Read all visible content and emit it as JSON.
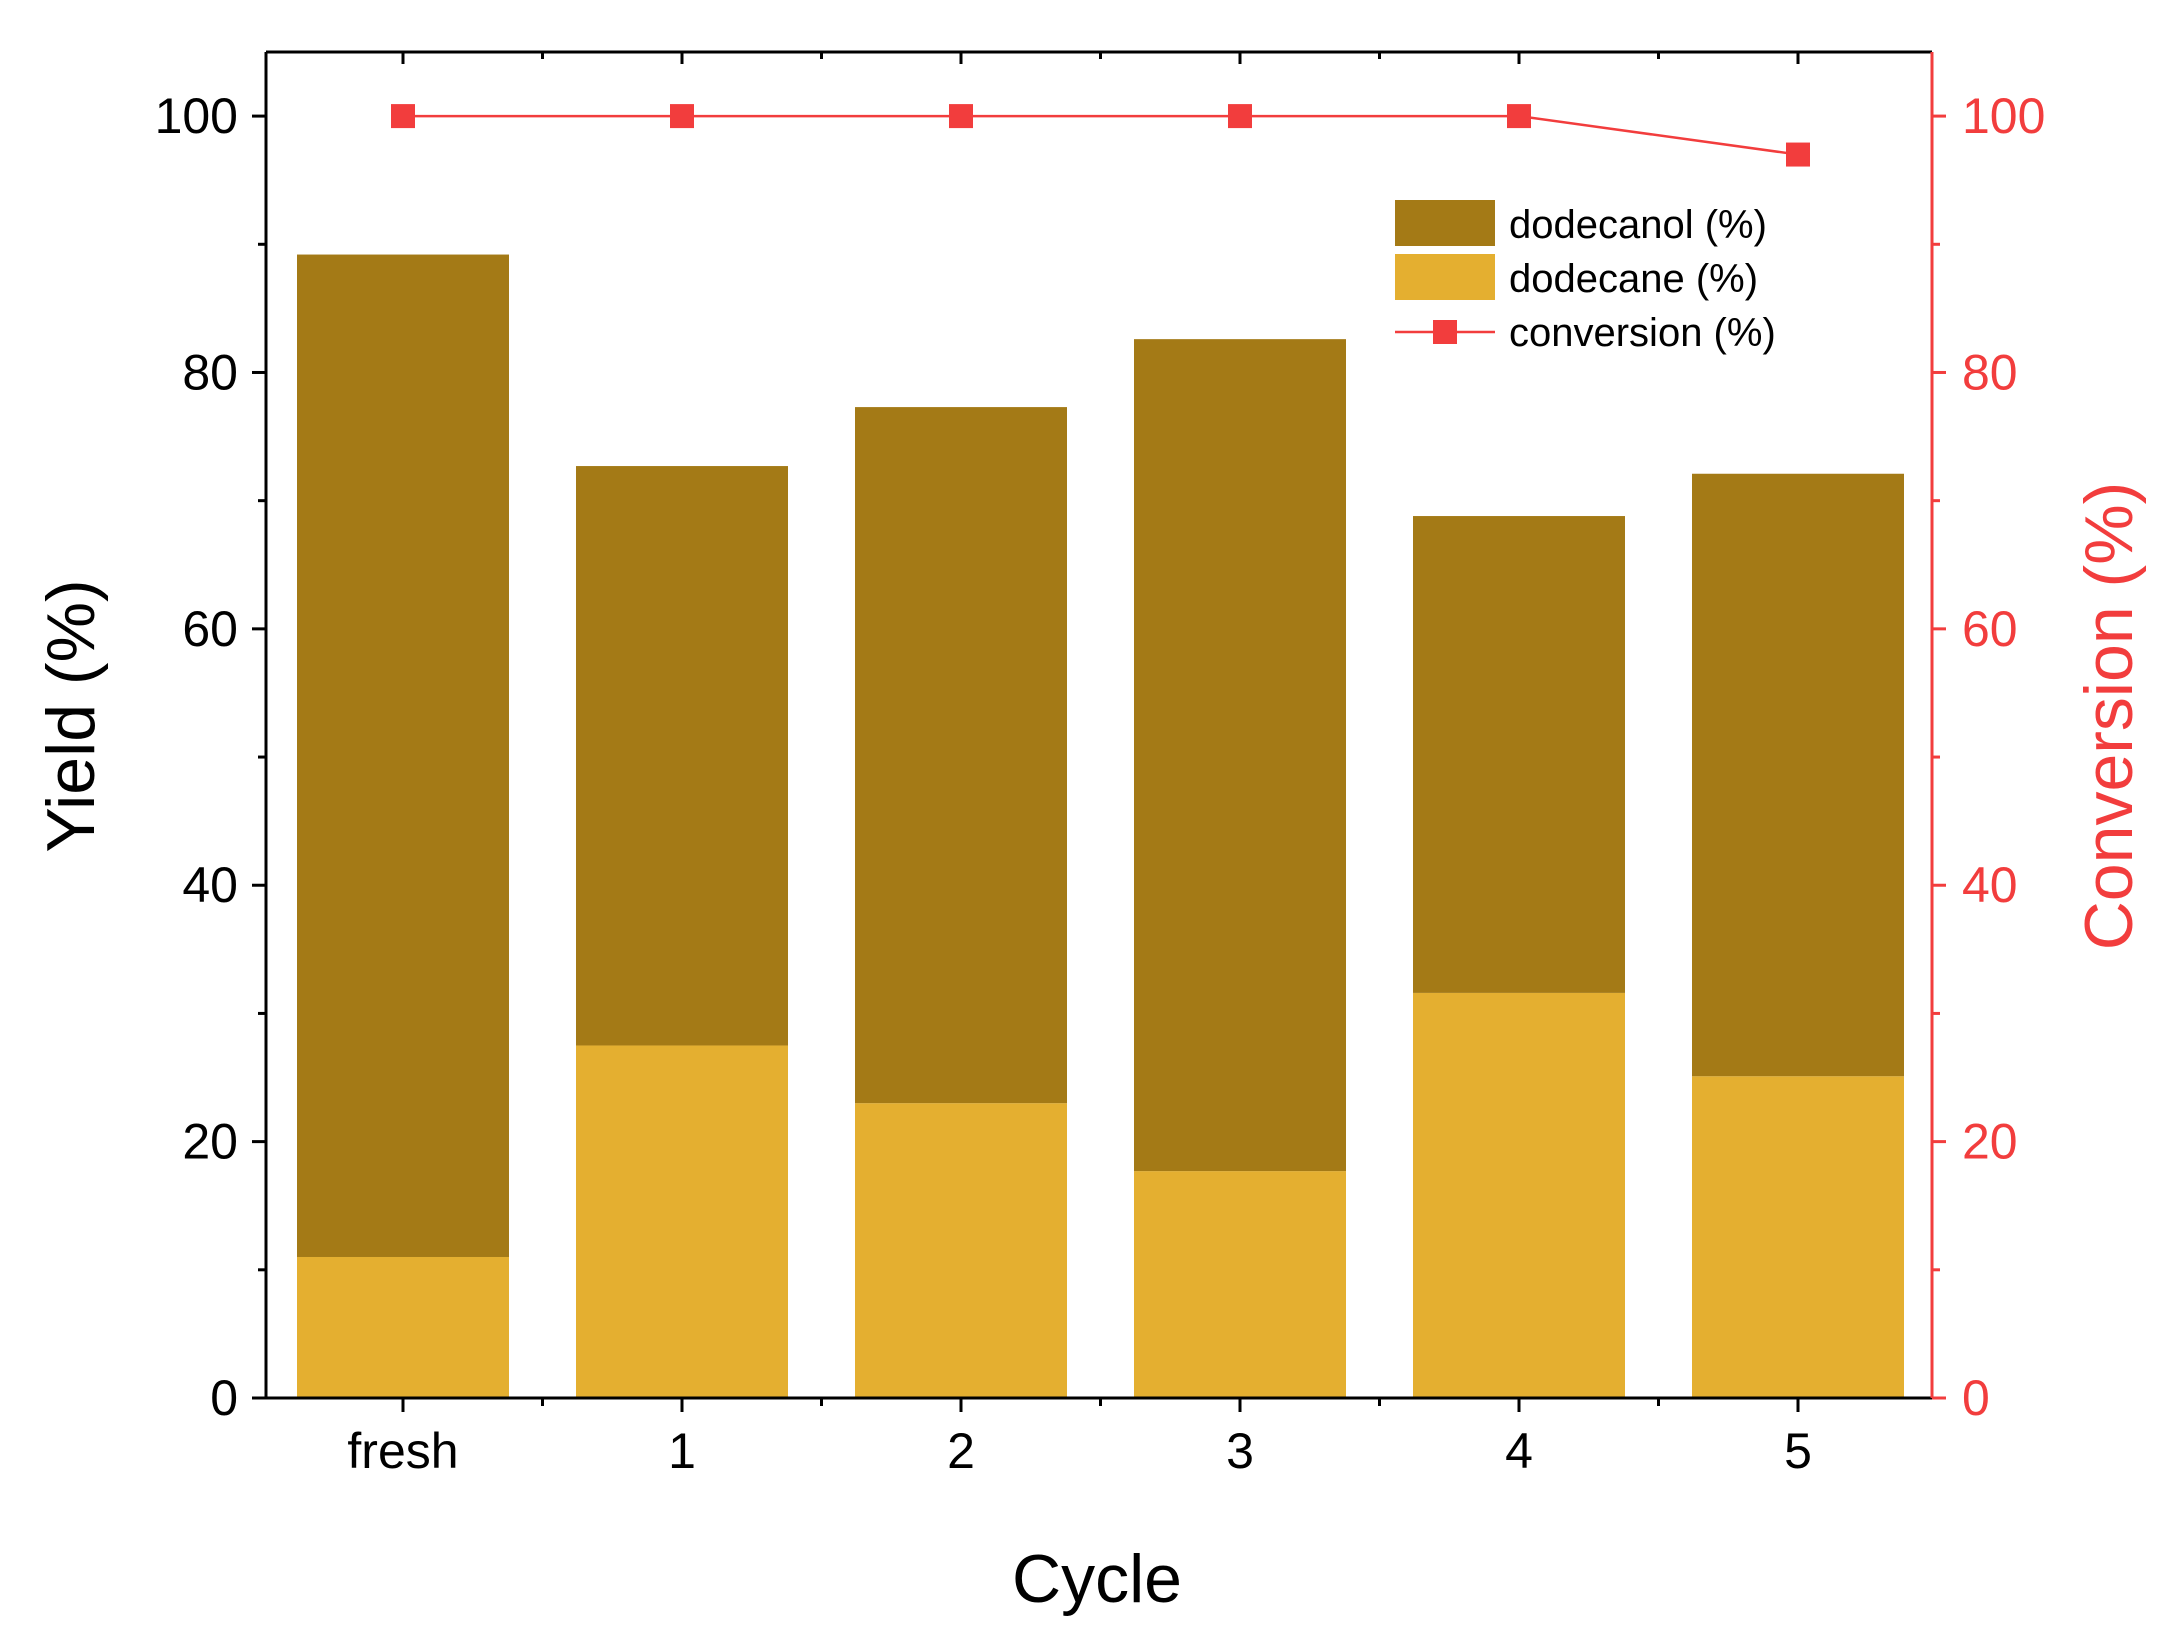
{
  "chart_data": {
    "type": "bar",
    "stacked": true,
    "categories": [
      "fresh",
      "1",
      "2",
      "3",
      "4",
      "5"
    ],
    "xlabel": "Cycle",
    "ylabel": "Yield (%)",
    "y2label": "Conversion (%)",
    "ylim": [
      0,
      105
    ],
    "y2lim": [
      0,
      105
    ],
    "yticks": [
      "0",
      "20",
      "40",
      "60",
      "80",
      "100"
    ],
    "y2ticks": [
      "0",
      "20",
      "40",
      "60",
      "80",
      "100"
    ],
    "series": [
      {
        "name": "dodecane (%)",
        "kind": "bar",
        "axis": "left",
        "color": "#E4AF30",
        "values": [
          11.0,
          27.5,
          23.0,
          17.7,
          31.6,
          25.1
        ]
      },
      {
        "name": "dodecanol (%)",
        "kind": "bar",
        "axis": "left",
        "color": "#A47A16",
        "values": [
          78.2,
          45.2,
          54.3,
          64.9,
          37.2,
          47.0
        ]
      },
      {
        "name": "conversion (%)",
        "kind": "line",
        "axis": "right",
        "color": "#F23D3D",
        "marker": "square",
        "values": [
          100,
          100,
          100,
          100,
          100,
          97
        ]
      }
    ],
    "legend": {
      "position": "top-right",
      "entries": [
        "dodecanol (%)",
        "dodecane (%)",
        "conversion (%)"
      ]
    },
    "grid": false
  }
}
